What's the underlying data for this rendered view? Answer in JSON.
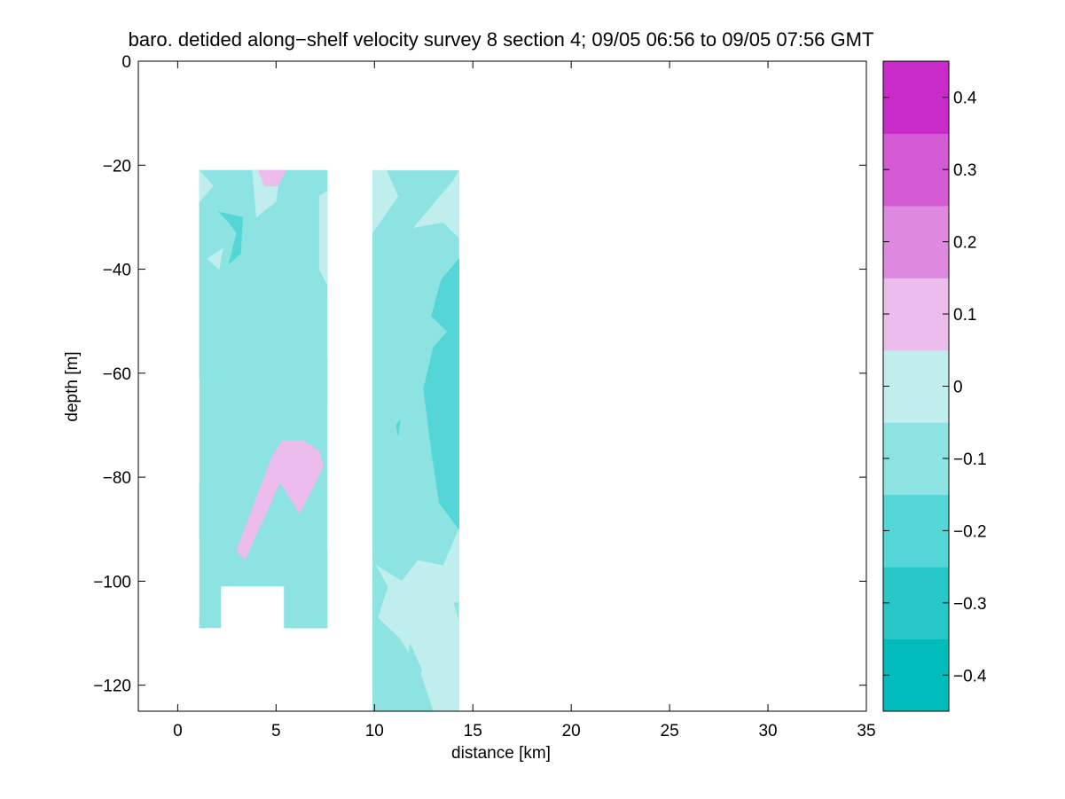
{
  "chart_data": {
    "type": "heatmap",
    "title": "baro. detided along−shelf velocity survey 8 section 4; 09/05 06:56 to 09/05 07:56 GMT",
    "xlabel": "distance [km]",
    "ylabel": "depth [m]",
    "xlim": [
      -2,
      35
    ],
    "ylim": [
      -125,
      0
    ],
    "xticks": [
      0,
      5,
      10,
      15,
      20,
      25,
      30,
      35
    ],
    "xtick_labels": [
      "0",
      "5",
      "10",
      "15",
      "20",
      "25",
      "30",
      "35"
    ],
    "yticks": [
      0,
      -20,
      -40,
      -60,
      -80,
      -100,
      -120
    ],
    "ytick_labels": [
      "0",
      "−20",
      "−40",
      "−60",
      "−80",
      "−100",
      "−120"
    ],
    "colorbar": {
      "levels": [
        -0.45,
        -0.35,
        -0.25,
        -0.15,
        -0.05,
        0.05,
        0.15,
        0.25,
        0.35,
        0.45
      ],
      "colors": [
        "#00bcbc",
        "#28c8c8",
        "#55d6d6",
        "#8ce3e2",
        "#bfeeed",
        "#ecbdec",
        "#df88df",
        "#d35ad3",
        "#c82bc8"
      ],
      "top_color": "#bf00bf",
      "range": [
        -0.45,
        0.45
      ],
      "ticks": [
        0.4,
        0.3,
        0.2,
        0.1,
        0,
        -0.1,
        -0.2,
        -0.3,
        -0.4
      ],
      "tick_labels": [
        "0.4",
        "0.3",
        "0.2",
        "0.1",
        "0",
        "−0.1",
        "−0.2",
        "−0.3",
        "−0.4"
      ]
    },
    "sections": [
      {
        "x_range": [
          1.1,
          7.6
        ],
        "depth_range": [
          -21,
          -109
        ],
        "background_level": -0.1,
        "blank_region": {
          "x": [
            2.2,
            5.4
          ],
          "depth": [
            -101,
            -109
          ]
        },
        "patches": [
          {
            "level": -0.15,
            "points": [
              [
                1.1,
                -21
              ],
              [
                7.6,
                -21
              ],
              [
                7.6,
                -43
              ],
              [
                7.0,
                -47
              ],
              [
                6.1,
                -48
              ],
              [
                5.3,
                -41
              ],
              [
                4.0,
                -54
              ],
              [
                3.2,
                -55
              ],
              [
                2.6,
                -59
              ],
              [
                1.1,
                -61
              ]
            ]
          },
          {
            "level": -0.05,
            "points": [
              [
                1.1,
                -21
              ],
              [
                1.8,
                -24
              ],
              [
                1.1,
                -27
              ]
            ]
          },
          {
            "level": -0.05,
            "points": [
              [
                1.5,
                -38
              ],
              [
                2.3,
                -36
              ],
              [
                2.1,
                -40
              ]
            ]
          },
          {
            "level": -0.05,
            "points": [
              [
                3.8,
                -21
              ],
              [
                5.2,
                -21
              ],
              [
                5.0,
                -27
              ],
              [
                4.0,
                -30
              ]
            ]
          },
          {
            "level": -0.05,
            "points": [
              [
                7.2,
                -26
              ],
              [
                7.6,
                -25
              ],
              [
                7.6,
                -43
              ],
              [
                7.2,
                -40
              ]
            ]
          },
          {
            "level": 0.05,
            "points": [
              [
                4.1,
                -21
              ],
              [
                5.5,
                -21
              ],
              [
                5.1,
                -24
              ],
              [
                4.4,
                -24
              ]
            ]
          },
          {
            "level": -0.25,
            "points": [
              [
                2.1,
                -29
              ],
              [
                3.3,
                -30
              ],
              [
                3.2,
                -37
              ],
              [
                2.6,
                -39
              ],
              [
                3.0,
                -33
              ],
              [
                2.6,
                -31
              ]
            ]
          },
          {
            "level": -0.15,
            "points": [
              [
                3.8,
                -62
              ],
              [
                4.5,
                -60
              ],
              [
                4.9,
                -64
              ],
              [
                4.4,
                -69
              ]
            ]
          },
          {
            "level": -0.15,
            "points": [
              [
                6.8,
                -60
              ],
              [
                7.6,
                -57
              ],
              [
                7.6,
                -66
              ],
              [
                6.9,
                -66
              ]
            ]
          },
          {
            "level": -0.15,
            "points": [
              [
                1.1,
                -81
              ],
              [
                2.5,
                -74
              ],
              [
                2.6,
                -79
              ],
              [
                1.6,
                -88
              ],
              [
                1.1,
                -92
              ]
            ]
          },
          {
            "level": 0.05,
            "points": [
              [
                3.0,
                -94
              ],
              [
                3.4,
                -96
              ],
              [
                5.2,
                -81
              ],
              [
                6.2,
                -87
              ],
              [
                7.4,
                -78
              ],
              [
                7.2,
                -75
              ],
              [
                6.4,
                -73
              ],
              [
                5.3,
                -73
              ],
              [
                4.8,
                -76
              ]
            ]
          },
          {
            "level": -0.15,
            "points": [
              [
                5.1,
                -95
              ],
              [
                6.4,
                -92
              ],
              [
                7.6,
                -94
              ],
              [
                7.6,
                -109
              ],
              [
                5.4,
                -109
              ],
              [
                5.4,
                -101
              ],
              [
                5.0,
                -101
              ]
            ]
          },
          {
            "level": -0.15,
            "points": [
              [
                1.1,
                -107
              ],
              [
                1.6,
                -104
              ],
              [
                1.4,
                -109
              ],
              [
                1.1,
                -109
              ]
            ]
          }
        ]
      },
      {
        "x_range": [
          9.9,
          14.3
        ],
        "depth_range": [
          -21,
          -125
        ],
        "background_level": -0.15,
        "patches": [
          {
            "level": -0.05,
            "points": [
              [
                9.9,
                -21
              ],
              [
                10.6,
                -21
              ],
              [
                11.2,
                -26
              ],
              [
                9.9,
                -33
              ]
            ]
          },
          {
            "level": -0.05,
            "points": [
              [
                12.0,
                -32
              ],
              [
                13.5,
                -31
              ],
              [
                14.3,
                -34
              ],
              [
                14.3,
                -21
              ],
              [
                14.0,
                -23
              ],
              [
                13.1,
                -27
              ]
            ]
          },
          {
            "level": -0.25,
            "points": [
              [
                13.4,
                -42
              ],
              [
                14.3,
                -38
              ],
              [
                14.3,
                -60
              ],
              [
                13.7,
                -52
              ],
              [
                12.9,
                -49
              ]
            ]
          },
          {
            "level": -0.25,
            "points": [
              [
                12.5,
                -63
              ],
              [
                13.0,
                -55
              ],
              [
                13.7,
                -52
              ],
              [
                14.3,
                -60
              ],
              [
                14.3,
                -90
              ],
              [
                13.3,
                -85
              ],
              [
                12.9,
                -75
              ]
            ]
          },
          {
            "level": -0.25,
            "points": [
              [
                11.1,
                -70
              ],
              [
                11.3,
                -69
              ],
              [
                11.2,
                -72
              ]
            ]
          },
          {
            "level": -0.05,
            "points": [
              [
                10.1,
                -97
              ],
              [
                11.4,
                -100
              ],
              [
                12.2,
                -96
              ],
              [
                13.5,
                -97
              ],
              [
                14.3,
                -90
              ],
              [
                14.3,
                -104
              ],
              [
                14.0,
                -104
              ],
              [
                14.3,
                -108
              ],
              [
                14.3,
                -125
              ],
              [
                13.0,
                -125
              ],
              [
                12.3,
                -117
              ],
              [
                11.3,
                -111
              ],
              [
                10.2,
                -107
              ],
              [
                10.7,
                -101
              ]
            ]
          },
          {
            "level": -0.15,
            "points": [
              [
                11.8,
                -112
              ],
              [
                12.4,
                -117
              ],
              [
                12.0,
                -122
              ],
              [
                11.6,
                -118
              ]
            ]
          }
        ]
      }
    ]
  }
}
